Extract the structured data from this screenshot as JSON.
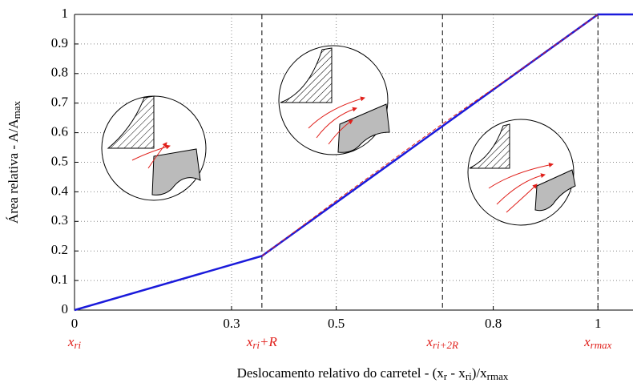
{
  "chart_data": {
    "type": "line",
    "x_label": [
      [
        "Deslocamento relativo do carretel - (x",
        "r"
      ],
      [
        " - x",
        "ri"
      ],
      [
        ")/x",
        "rmax"
      ]
    ],
    "y_label": [
      "Área relativa - A/A",
      "max"
    ],
    "xlim": [
      0,
      1.067
    ],
    "ylim": [
      0,
      1
    ],
    "xticks": [
      0,
      0.3,
      0.5,
      0.8,
      1
    ],
    "yticks": [
      0,
      0.1,
      0.2,
      0.3,
      0.4,
      0.5,
      0.6,
      0.7,
      0.8,
      0.9,
      1
    ],
    "grid": true,
    "series": [
      {
        "color": "#1a1adb",
        "style": "solid",
        "x": [
          0,
          0.358,
          1,
          1.067
        ],
        "values": [
          0,
          0.183,
          1,
          1
        ]
      },
      {
        "color": "#e0201b",
        "style": "dashed",
        "x": [
          0.358,
          0.5,
          0.703,
          0.85,
          1
        ],
        "values": [
          0.183,
          0.37,
          0.63,
          0.81,
          1
        ]
      }
    ],
    "markers": [
      {
        "x": 0,
        "base": "x",
        "sub": "ri",
        "suffix": ""
      },
      {
        "x": 0.358,
        "base": "x",
        "sub": "ri",
        "suffix": "+R"
      },
      {
        "x": 0.703,
        "base": "x",
        "sub": "ri+2R",
        "suffix": ""
      },
      {
        "x": 1,
        "base": "x",
        "sub": "rmax",
        "suffix": ""
      }
    ]
  }
}
